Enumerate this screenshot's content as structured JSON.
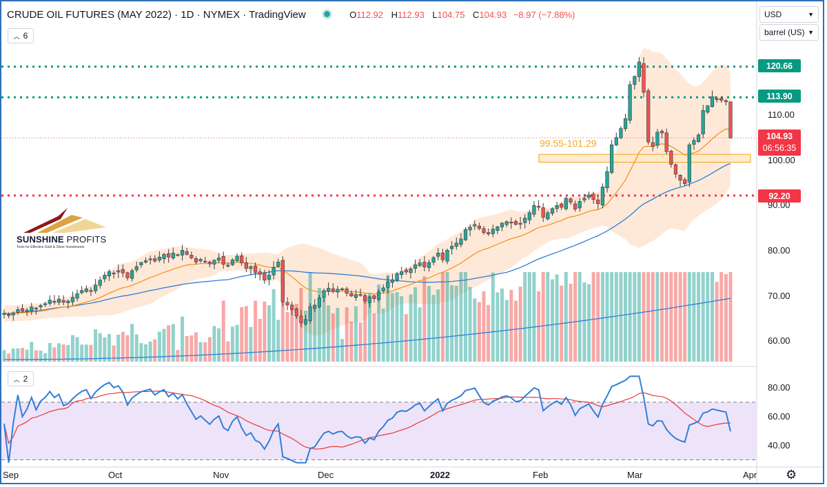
{
  "header": {
    "title": "CRUDE OIL FUTURES (MAY 2022) · 1D · NYMEX · TradingView",
    "ohlc": {
      "o_label": "O",
      "o": "112.92",
      "h_label": "H",
      "h": "112.93",
      "l_label": "L",
      "l": "104.75",
      "c_label": "C",
      "c": "104.93",
      "change": "−8.97 (−7.88%)"
    }
  },
  "controls": {
    "currency": "USD",
    "unit": "barrel (US)",
    "main_indicators_count": "6",
    "rsi_indicators_count": "2"
  },
  "colors": {
    "up": "#26a69a",
    "down": "#ef5350",
    "ema20": "#f7931e",
    "sma": "#2f7ed8",
    "band": "#fde2cc",
    "level_green": "#089981",
    "level_red": "#f23645",
    "zone": "#f5a623",
    "rsi_line": "#2f7ed8",
    "rsi_signal": "#e53935",
    "rsi_bg": "#eee4f9"
  },
  "price_tags": {
    "level_high": "120.66",
    "level_mid": "113.90",
    "last": "104.93",
    "countdown": "06:56:35",
    "level_low": "92.20"
  },
  "zone_label": "99.55-101.29",
  "brand": {
    "name_bold": "SUNSHINE",
    "name_rest": " PROFITS",
    "tagline": "Tools for Effective Gold & Silver Investments"
  },
  "chart_data": {
    "type": "candlestick",
    "title": "CRUDE OIL FUTURES (MAY 2022)",
    "interval": "1D",
    "exchange": "NYMEX",
    "y_axis": {
      "ticks": [
        "110.00",
        "100.00",
        "90.00",
        "80.00",
        "70.00",
        "60.00"
      ],
      "range": [
        55.5,
        129
      ]
    },
    "x_axis": {
      "ticks": [
        "Sep",
        "Oct",
        "Nov",
        "Dec",
        "2022",
        "Feb",
        "Mar",
        "Apr"
      ]
    },
    "horizontal_levels": [
      {
        "value": 120.66,
        "style": "dotted",
        "color": "green"
      },
      {
        "value": 113.9,
        "style": "dotted",
        "color": "green"
      },
      {
        "value": 92.2,
        "style": "dotted",
        "color": "red"
      }
    ],
    "zone": {
      "low": 99.55,
      "high": 101.29,
      "label": "99.55-101.29"
    },
    "closes": [
      66.2,
      65.8,
      66.3,
      67.0,
      66.6,
      66.9,
      67.6,
      67.2,
      67.9,
      68.3,
      69.1,
      68.8,
      69.3,
      68.6,
      68.9,
      69.7,
      70.5,
      71.2,
      71.6,
      71.0,
      72.4,
      73.5,
      74.6,
      75.4,
      75.0,
      75.6,
      75.1,
      74.0,
      75.6,
      76.5,
      77.4,
      77.8,
      78.2,
      77.7,
      78.6,
      79.2,
      78.6,
      79.5,
      79.0,
      80.1,
      79.2,
      78.4,
      77.5,
      78.1,
      77.6,
      77.1,
      77.9,
      78.4,
      77.0,
      76.6,
      78.0,
      78.8,
      77.3,
      76.1,
      76.5,
      75.2,
      74.8,
      73.5,
      74.6,
      76.3,
      77.5,
      68.7,
      68.0,
      67.0,
      65.6,
      64.1,
      64.8,
      67.6,
      68.0,
      69.6,
      71.2,
      71.7,
      71.0,
      71.5,
      71.6,
      70.6,
      70.0,
      70.3,
      70.2,
      68.9,
      69.8,
      69.4,
      70.9,
      71.8,
      73.1,
      73.6,
      75.0,
      75.4,
      75.3,
      76.0,
      76.9,
      77.3,
      76.4,
      77.4,
      78.5,
      79.5,
      78.0,
      80.1,
      81.0,
      81.7,
      82.6,
      84.7,
      85.2,
      85.8,
      84.9,
      84.0,
      83.7,
      84.8,
      85.3,
      86.1,
      86.4,
      86.2,
      85.8,
      86.0,
      87.2,
      88.4,
      90.0,
      89.8,
      87.4,
      88.4,
      89.3,
      90.0,
      89.6,
      91.6,
      90.7,
      89.2,
      90.9,
      91.6,
      92.3,
      91.3,
      90.4,
      94.1,
      97.5,
      103.4,
      105.0,
      107.0,
      109.2,
      116.7,
      118.5,
      121.7,
      115.0,
      104.0,
      103.0,
      106.2,
      106.0,
      101.9,
      99.1,
      96.9,
      95.6,
      94.8,
      103.4,
      104.4,
      105.6,
      111.0,
      112.0,
      114.0,
      113.6,
      113.2,
      112.9,
      104.93
    ],
    "volume_scale_note": "relative",
    "rsi": {
      "levels": [
        70,
        30
      ],
      "ticks": [
        "80.00",
        "60.00",
        "40.00"
      ],
      "range": [
        25,
        90
      ]
    }
  }
}
